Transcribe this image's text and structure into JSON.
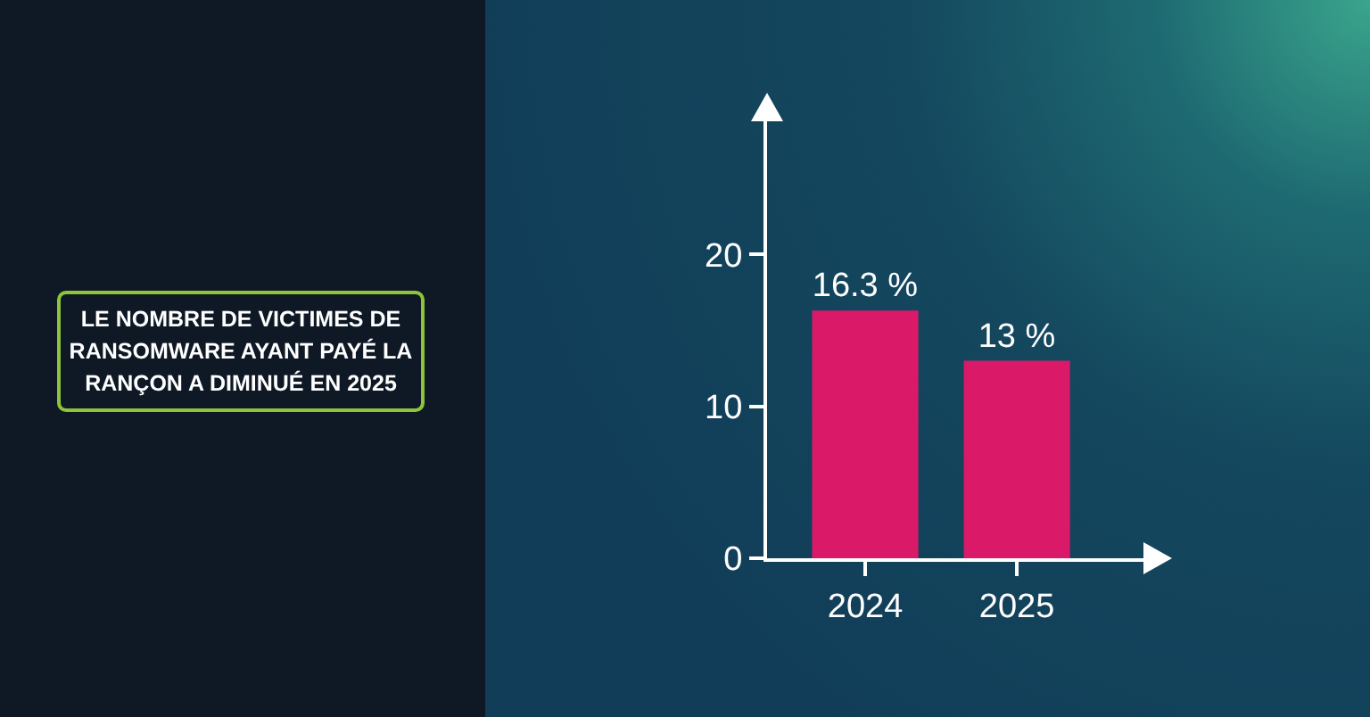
{
  "chart_data": {
    "type": "bar",
    "title": "LE NOMBRE DE VICTIMES DE RANSOMWARE AYANT PAYÉ LA RANÇON A DIMINUÉ EN 2025",
    "categories": [
      "2024",
      "2025"
    ],
    "values": [
      16.3,
      13
    ],
    "value_labels": [
      "16.3 %",
      "13 %"
    ],
    "color": "#da1a68",
    "ylim": [
      0,
      29
    ],
    "yticks": [
      0,
      10,
      20
    ],
    "grid": false,
    "legend": false
  }
}
